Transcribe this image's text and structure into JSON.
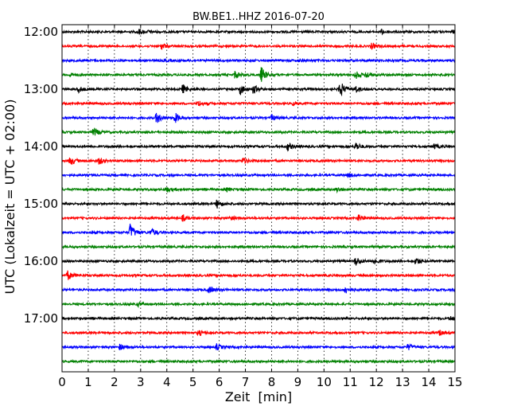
{
  "chart_data": {
    "type": "line",
    "title": "BW.BE1..HHZ 2016-07-20",
    "xlabel": "Zeit  [min]",
    "ylabel": "UTC (Lokalzeit = UTC + 02:00)",
    "xlim": [
      0,
      15
    ],
    "x_ticks": [
      "0",
      "1",
      "2",
      "3",
      "4",
      "5",
      "6",
      "7",
      "8",
      "9",
      "10",
      "11",
      "12",
      "13",
      "14",
      "15"
    ],
    "y_ticks": [
      "12:00",
      "13:00",
      "14:00",
      "15:00",
      "16:00",
      "17:00"
    ],
    "grid": true,
    "line_colors": [
      "#000000",
      "#ff0000",
      "#0000ff",
      "#008000"
    ],
    "traces": [
      {
        "start": "12:00",
        "color": "#000000",
        "events": [
          [
            2.9,
            0.35
          ],
          [
            3.3,
            0.12
          ],
          [
            12.2,
            0.25
          ],
          [
            14.9,
            0.15
          ]
        ]
      },
      {
        "start": "12:15",
        "color": "#ff0000",
        "events": [
          [
            3.8,
            0.35
          ],
          [
            11.8,
            0.35
          ]
        ]
      },
      {
        "start": "12:30",
        "color": "#0000ff",
        "events": [
          [
            3.9,
            0.1
          ],
          [
            9.0,
            0.1
          ]
        ]
      },
      {
        "start": "12:45",
        "color": "#008000",
        "events": [
          [
            7.6,
            0.9
          ],
          [
            6.6,
            0.45
          ],
          [
            11.2,
            0.45
          ],
          [
            11.6,
            0.35
          ],
          [
            0.3,
            0.2
          ]
        ]
      },
      {
        "start": "13:00",
        "color": "#000000",
        "events": [
          [
            0.6,
            0.4
          ],
          [
            4.6,
            0.5
          ],
          [
            6.8,
            0.6
          ],
          [
            7.3,
            0.5
          ],
          [
            10.6,
            1.0
          ],
          [
            11.2,
            0.4
          ]
        ]
      },
      {
        "start": "13:15",
        "color": "#ff0000",
        "events": [
          [
            5.2,
            0.35
          ],
          [
            8.8,
            0.15
          ]
        ]
      },
      {
        "start": "13:30",
        "color": "#0000ff",
        "events": [
          [
            3.6,
            0.7
          ],
          [
            4.3,
            0.6
          ],
          [
            8.0,
            0.35
          ]
        ]
      },
      {
        "start": "13:45",
        "color": "#008000",
        "events": [
          [
            1.2,
            0.5
          ]
        ]
      },
      {
        "start": "14:00",
        "color": "#000000",
        "events": [
          [
            8.6,
            0.45
          ],
          [
            11.2,
            0.5
          ],
          [
            14.2,
            0.3
          ]
        ]
      },
      {
        "start": "14:15",
        "color": "#ff0000",
        "events": [
          [
            0.3,
            0.55
          ],
          [
            1.4,
            0.4
          ],
          [
            6.9,
            0.35
          ]
        ]
      },
      {
        "start": "14:30",
        "color": "#0000ff",
        "events": [
          [
            10.9,
            0.25
          ]
        ]
      },
      {
        "start": "14:45",
        "color": "#008000",
        "events": [
          [
            4.0,
            0.25
          ],
          [
            6.3,
            0.2
          ],
          [
            10.5,
            0.25
          ]
        ]
      },
      {
        "start": "15:00",
        "color": "#000000",
        "events": [
          [
            5.9,
            0.5
          ]
        ]
      },
      {
        "start": "15:15",
        "color": "#ff0000",
        "events": [
          [
            4.6,
            0.35
          ],
          [
            6.4,
            0.2
          ],
          [
            11.3,
            0.4
          ]
        ]
      },
      {
        "start": "15:30",
        "color": "#0000ff",
        "events": [
          [
            2.6,
            1.0
          ],
          [
            3.4,
            0.5
          ]
        ]
      },
      {
        "start": "15:45",
        "color": "#008000",
        "events": []
      },
      {
        "start": "16:00",
        "color": "#000000",
        "events": [
          [
            11.2,
            0.55
          ],
          [
            11.9,
            0.4
          ],
          [
            13.5,
            0.45
          ]
        ]
      },
      {
        "start": "16:15",
        "color": "#ff0000",
        "events": [
          [
            0.2,
            0.55
          ]
        ]
      },
      {
        "start": "16:30",
        "color": "#0000ff",
        "events": [
          [
            5.6,
            0.4
          ],
          [
            10.8,
            0.45
          ]
        ]
      },
      {
        "start": "16:45",
        "color": "#008000",
        "events": [
          [
            2.9,
            0.2
          ]
        ]
      },
      {
        "start": "17:00",
        "color": "#000000",
        "events": [
          [
            14.8,
            0.25
          ]
        ]
      },
      {
        "start": "17:15",
        "color": "#ff0000",
        "events": [
          [
            5.2,
            0.35
          ],
          [
            14.4,
            0.3
          ]
        ]
      },
      {
        "start": "17:30",
        "color": "#0000ff",
        "events": [
          [
            2.2,
            0.3
          ],
          [
            5.9,
            0.35
          ],
          [
            13.2,
            0.35
          ]
        ]
      },
      {
        "start": "17:45",
        "color": "#008000",
        "events": []
      }
    ]
  }
}
